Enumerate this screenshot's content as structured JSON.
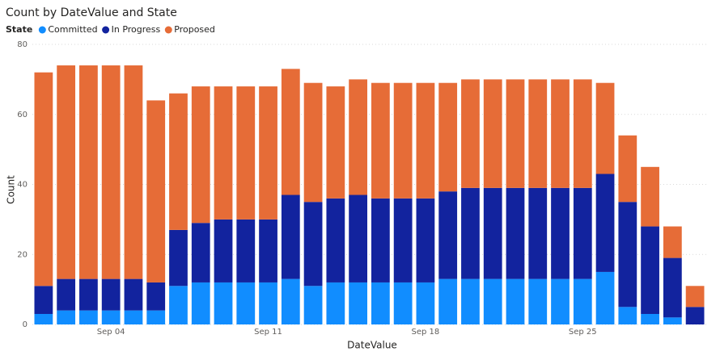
{
  "chart_data": {
    "type": "stacked_bar",
    "title": "Count by DateValue and State",
    "legend_title": "State",
    "legend": "top-left",
    "x_label": "DateValue",
    "y_label": "Count",
    "categories": [
      null,
      null,
      null,
      "Sep 04",
      null,
      null,
      null,
      null,
      null,
      null,
      "Sep 11",
      null,
      null,
      null,
      null,
      null,
      null,
      "Sep 18",
      null,
      null,
      null,
      null,
      null,
      null,
      "Sep 25",
      null,
      null,
      null,
      null,
      null
    ],
    "series": [
      {
        "name": "Committed",
        "color": "#118dff",
        "values": [
          3,
          4,
          4,
          4,
          4,
          4,
          11,
          12,
          12,
          12,
          12,
          13,
          11,
          12,
          12,
          12,
          12,
          12,
          13,
          13,
          13,
          13,
          13,
          13,
          13,
          15,
          5,
          3,
          2,
          0
        ]
      },
      {
        "name": "In Progress",
        "color": "#12239e",
        "values": [
          8,
          9,
          9,
          9,
          9,
          8,
          16,
          17,
          18,
          18,
          18,
          24,
          24,
          24,
          25,
          24,
          24,
          24,
          25,
          26,
          26,
          26,
          26,
          26,
          26,
          28,
          30,
          25,
          17,
          5
        ]
      },
      {
        "name": "Proposed",
        "color": "#e66c37",
        "values": [
          61,
          61,
          61,
          61,
          61,
          52,
          39,
          39,
          38,
          38,
          38,
          36,
          34,
          32,
          33,
          33,
          33,
          33,
          31,
          31,
          31,
          31,
          31,
          31,
          31,
          26,
          19,
          17,
          9,
          6
        ]
      }
    ],
    "ylim": [
      0,
      80
    ],
    "yticks": [
      0,
      20,
      40,
      60,
      80
    ],
    "grid": true
  }
}
